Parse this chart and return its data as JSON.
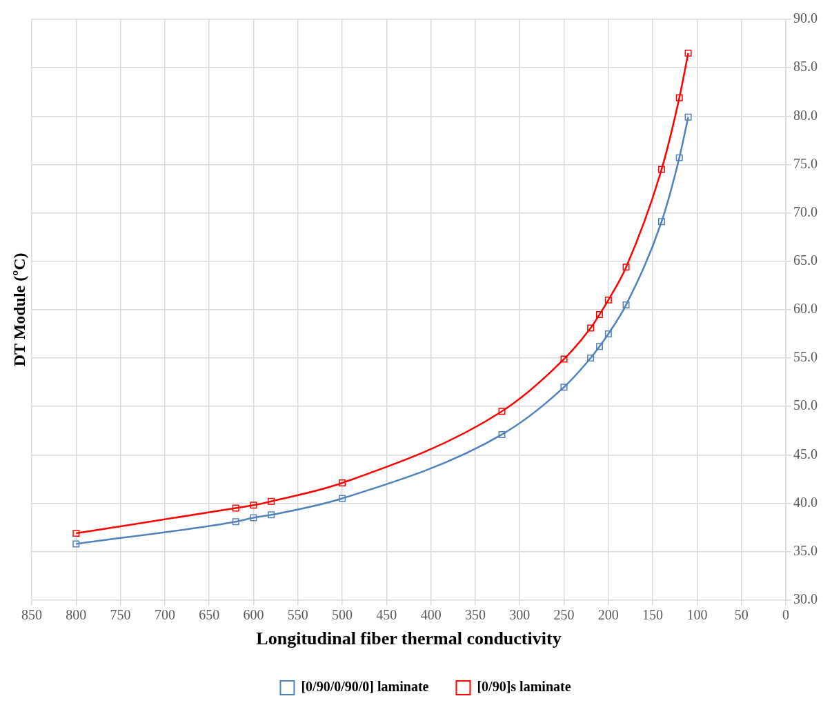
{
  "chart_data": {
    "type": "line",
    "xlabel": "Longitudinal fiber thermal conductivity",
    "ylabel": "DT Module (ºC)",
    "xlim": [
      850,
      0
    ],
    "xticks": [
      850,
      800,
      750,
      700,
      650,
      600,
      550,
      500,
      450,
      400,
      350,
      300,
      250,
      200,
      150,
      100,
      50,
      0
    ],
    "ylim": [
      30,
      90
    ],
    "yticks": [
      {
        "value": 30,
        "label": "30.0"
      },
      {
        "value": 35,
        "label": "35.0"
      },
      {
        "value": 40,
        "label": "40.0"
      },
      {
        "value": 45,
        "label": "45.0"
      },
      {
        "value": 50,
        "label": "50.0"
      },
      {
        "value": 55,
        "label": "55.0"
      },
      {
        "value": 60,
        "label": "60.0"
      },
      {
        "value": 65,
        "label": "65.0"
      },
      {
        "value": 70,
        "label": "70.0"
      },
      {
        "value": 75,
        "label": "75.0"
      },
      {
        "value": 80,
        "label": "80.0"
      },
      {
        "value": 85,
        "label": "85.0"
      },
      {
        "value": 90,
        "label": "90.0"
      }
    ],
    "x": [
      800,
      620,
      600,
      580,
      500,
      320,
      250,
      220,
      210,
      200,
      180,
      140,
      120,
      110
    ],
    "series": [
      {
        "name": "[0/90/0/90/0] laminate",
        "color": "#4f81bd",
        "values": [
          35.8,
          38.1,
          38.5,
          38.8,
          40.5,
          47.1,
          52.0,
          55.0,
          56.2,
          57.5,
          60.5,
          69.1,
          75.7,
          79.9
        ]
      },
      {
        "name": "[0/90]s laminate",
        "color": "#ff0000",
        "values": [
          36.9,
          39.5,
          39.8,
          40.2,
          42.1,
          49.5,
          54.9,
          58.1,
          59.5,
          61.0,
          64.4,
          74.5,
          81.9,
          86.5
        ]
      }
    ],
    "grid": true,
    "legend": "bottom",
    "marker": "square",
    "line_style": "solid"
  }
}
